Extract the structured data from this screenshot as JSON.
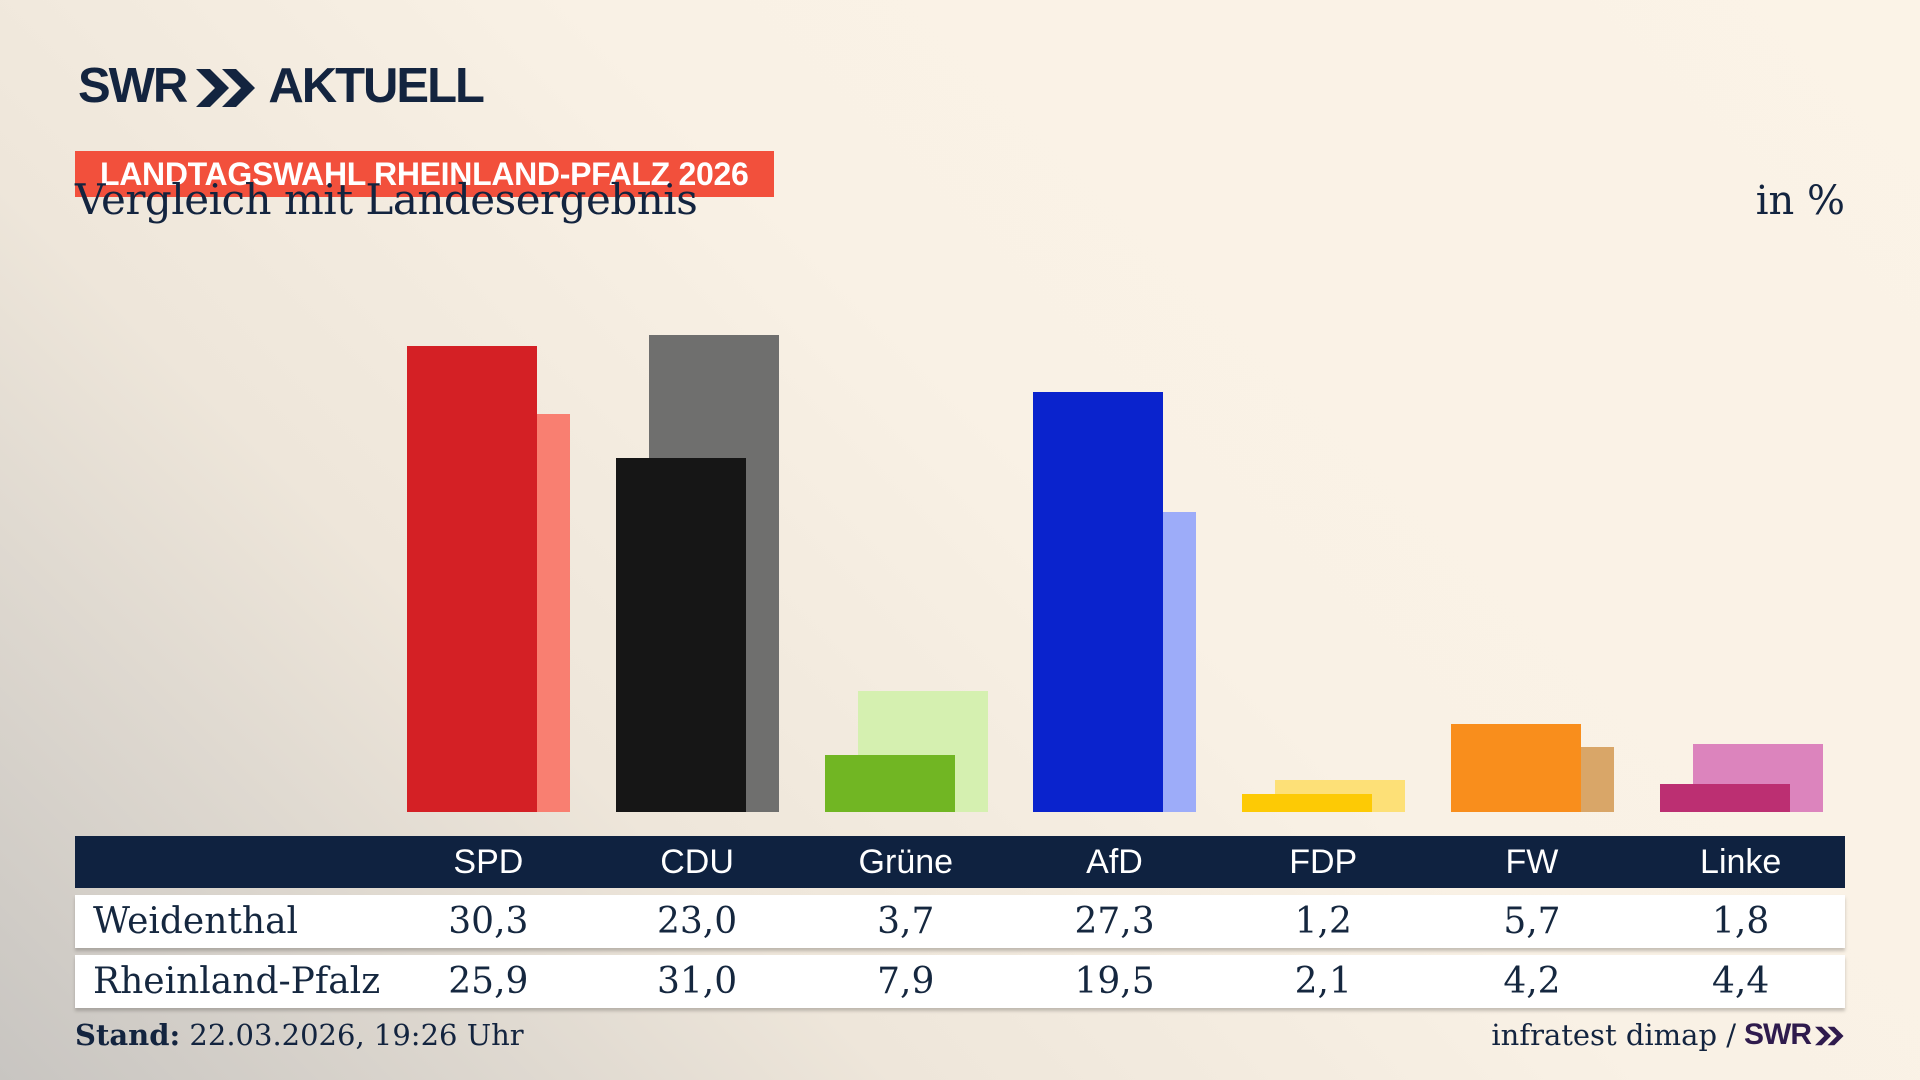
{
  "header": {
    "brand": "SWR",
    "product": "AKTUELL",
    "badge": "LANDTAGSWAHL RHEINLAND-PFALZ 2026",
    "title": "Vergleich mit Landesergebnis",
    "unit_label": "in %"
  },
  "chart_data": {
    "type": "bar",
    "categories": [
      "SPD",
      "CDU",
      "Grüne",
      "AfD",
      "FDP",
      "FW",
      "Linke"
    ],
    "series": [
      {
        "name": "Weidenthal",
        "values": [
          30.3,
          23.0,
          3.7,
          27.3,
          1.2,
          5.7,
          1.8
        ]
      },
      {
        "name": "Rheinland-Pfalz",
        "values": [
          25.9,
          31.0,
          7.9,
          19.5,
          2.1,
          4.2,
          4.4
        ]
      }
    ],
    "unit": "%",
    "ylim": [
      0,
      32
    ],
    "grid": false,
    "legend": "table-below",
    "value_format": "comma-decimal",
    "colors": {
      "front": [
        "#d42025",
        "#161616",
        "#71b623",
        "#0a23cd",
        "#fdca05",
        "#f98e1c",
        "#bc2f72"
      ],
      "back": [
        "#f97f71",
        "#6f6f6e",
        "#d5f0b0",
        "#9dacf9",
        "#fde077",
        "#d9a668",
        "#dc84bd"
      ]
    }
  },
  "footer": {
    "stand_label": "Stand:",
    "stand_value": " 22.03.2026, 19:26 Uhr",
    "source_text": "infratest dimap /",
    "source_brand": "SWR"
  },
  "colors": {
    "navy_text": "#13243f",
    "table_header_bg": "#0f2240",
    "badge_bg": "#f2503c",
    "background_top": "#fbf3e7",
    "background_bottom": "#c8c5c1",
    "source_brand_color": "#2f1b4d"
  }
}
